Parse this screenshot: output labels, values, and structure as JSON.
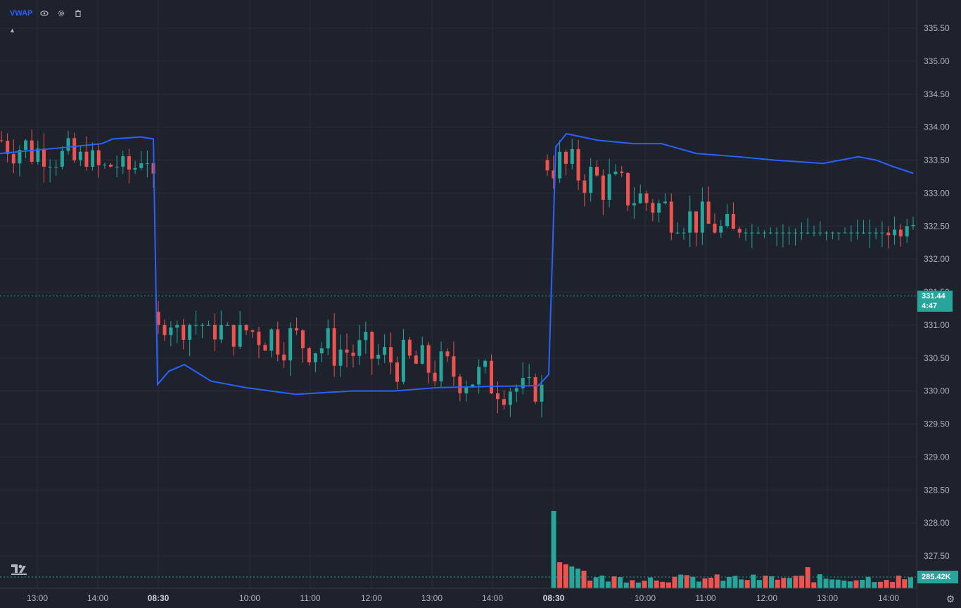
{
  "indicator": {
    "name": "VWAP",
    "icons": [
      "eye-icon",
      "gear-icon",
      "trash-icon"
    ]
  },
  "colors": {
    "background": "#1e222d",
    "grid": "#2a2e39",
    "up": "#26a69a",
    "down": "#ef5350",
    "vwap": "#2962ff",
    "axis_text": "#b2b5be"
  },
  "last_price": {
    "value": "331.44",
    "countdown": "4:47"
  },
  "last_volume": "285.42K",
  "chart_data": {
    "type": "candlestick",
    "title": "",
    "y_axis": {
      "ticks": [
        "335.50",
        "335.00",
        "334.50",
        "334.00",
        "333.50",
        "333.00",
        "332.50",
        "332.00",
        "331.50",
        "331.00",
        "330.50",
        "330.00",
        "329.50",
        "329.00",
        "328.50",
        "328.00",
        "327.50"
      ],
      "ylim": [
        327.25,
        335.75
      ]
    },
    "x_axis": {
      "ticks": [
        "13:00",
        "14:00",
        "08:30",
        "10:00",
        "11:00",
        "12:00",
        "13:00",
        "14:00",
        "08:30",
        "10:00",
        "11:00",
        "12:00",
        "13:00",
        "14:00"
      ],
      "bold_ticks": [
        "08:30"
      ]
    },
    "price_line": 331.44,
    "vwap_points": [
      [
        0,
        333.6
      ],
      [
        50,
        333.65
      ],
      [
        100,
        333.7
      ],
      [
        145,
        333.75
      ],
      [
        160,
        333.82
      ],
      [
        200,
        333.85
      ],
      [
        218,
        333.82
      ],
      [
        224,
        330.1
      ],
      [
        240,
        330.3
      ],
      [
        262,
        330.4
      ],
      [
        300,
        330.15
      ],
      [
        350,
        330.05
      ],
      [
        420,
        329.95
      ],
      [
        500,
        330.0
      ],
      [
        560,
        330.0
      ],
      [
        620,
        330.05
      ],
      [
        700,
        330.07
      ],
      [
        765,
        330.08
      ],
      [
        780,
        330.25
      ],
      [
        790,
        333.7
      ],
      [
        805,
        333.9
      ],
      [
        850,
        333.8
      ],
      [
        900,
        333.75
      ],
      [
        940,
        333.75
      ],
      [
        990,
        333.6
      ],
      [
        1050,
        333.55
      ],
      [
        1100,
        333.5
      ],
      [
        1170,
        333.45
      ],
      [
        1220,
        333.55
      ],
      [
        1245,
        333.5
      ],
      [
        1270,
        333.4
      ],
      [
        1298,
        333.3
      ]
    ],
    "segments": [
      {
        "start": 333.8,
        "end": 333.1,
        "count": 26,
        "hi": 334.6,
        "lo": 333.4,
        "x0": 2,
        "x1": 218
      },
      {
        "start": 331.2,
        "end": 330.0,
        "count": 62,
        "hi": 331.0,
        "lo": 329.3,
        "x0": 225,
        "x1": 770
      },
      {
        "start": 333.5,
        "end": 331.2,
        "count": 60,
        "hi": 334.6,
        "lo": 332.4,
        "x0": 778,
        "x1": 1298
      }
    ],
    "volume": {
      "last": "285.42K"
    }
  }
}
